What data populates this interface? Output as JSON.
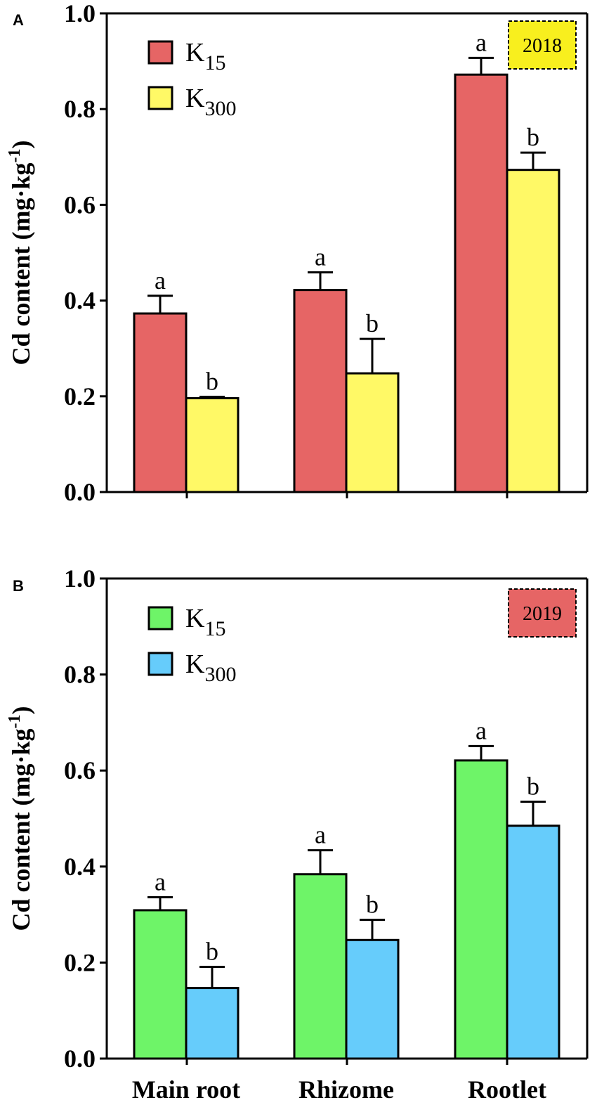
{
  "chart_data": [
    {
      "type": "bar",
      "panel": "A",
      "year": "2018",
      "year_box_color": "#f8ef1e",
      "ylabel": "Cd content (mg·kg-1)",
      "ylabel_main": "Cd content (mg·kg",
      "ylabel_exp": "-1",
      "ylabel_close": ")",
      "ylim": [
        0,
        1.0
      ],
      "yticks": [
        "0.0",
        "0.2",
        "0.4",
        "0.6",
        "0.8",
        "1.0"
      ],
      "categories": [
        "Main root",
        "Rhizome",
        "Rootlet"
      ],
      "series": [
        {
          "name": "K15",
          "label_main": "K",
          "label_sub": "15",
          "color": "#e66565",
          "values": [
            0.373,
            0.422,
            0.872
          ],
          "errors": [
            0.037,
            0.037,
            0.035
          ],
          "letters": [
            "a",
            "a",
            "a"
          ]
        },
        {
          "name": "K300",
          "label_main": "K",
          "label_sub": "300",
          "color": "#fff966",
          "values": [
            0.196,
            0.248,
            0.673
          ],
          "errors": [
            0.003,
            0.072,
            0.036
          ],
          "letters": [
            "b",
            "b",
            "b"
          ]
        }
      ]
    },
    {
      "type": "bar",
      "panel": "B",
      "year": "2019",
      "year_box_color": "#e66565",
      "ylabel": "Cd content (mg·kg-1)",
      "ylabel_main": "Cd content (mg·kg",
      "ylabel_exp": "-1",
      "ylabel_close": ")",
      "ylim": [
        0,
        1.0
      ],
      "yticks": [
        "0.0",
        "0.2",
        "0.4",
        "0.6",
        "0.8",
        "1.0"
      ],
      "categories": [
        "Main root",
        "Rhizome",
        "Rootlet"
      ],
      "series": [
        {
          "name": "K15",
          "label_main": "K",
          "label_sub": "15",
          "color": "#6ef468",
          "values": [
            0.309,
            0.384,
            0.621
          ],
          "errors": [
            0.027,
            0.05,
            0.03
          ],
          "letters": [
            "a",
            "a",
            "a"
          ]
        },
        {
          "name": "K300",
          "label_main": "K",
          "label_sub": "300",
          "color": "#66ccfb",
          "values": [
            0.147,
            0.247,
            0.485
          ],
          "errors": [
            0.044,
            0.042,
            0.05
          ],
          "letters": [
            "b",
            "b",
            "b"
          ]
        }
      ]
    }
  ]
}
